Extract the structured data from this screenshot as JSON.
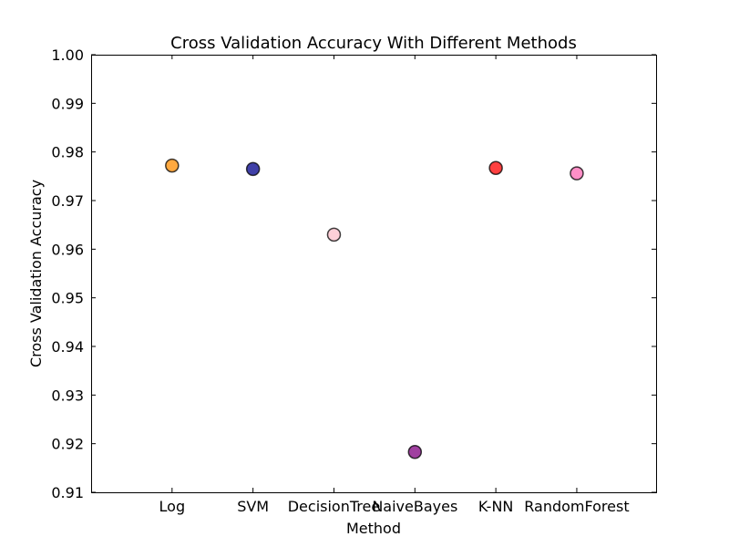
{
  "chart_data": {
    "type": "scatter",
    "title": "Cross Validation Accuracy With Different Methods",
    "xlabel": "Method",
    "ylabel": "Cross Validation Accuracy",
    "categories": [
      "Log",
      "SVM",
      "DecisionTree",
      "NaiveBayes",
      "K-NN",
      "RandomForest"
    ],
    "values": [
      0.9772,
      0.9765,
      0.963,
      0.9183,
      0.9767,
      0.9756
    ],
    "colors": [
      "#ff8c00",
      "#00008b",
      "#ffc0cb",
      "#800080",
      "#ff0000",
      "#ff69b4"
    ],
    "ylim": [
      0.91,
      1.0
    ],
    "yticks": [
      "0.91",
      "0.92",
      "0.93",
      "0.94",
      "0.95",
      "0.96",
      "0.97",
      "0.98",
      "0.99",
      "1.00"
    ],
    "xlim": [
      -1,
      5.98
    ],
    "grid": false,
    "legend": "none"
  }
}
